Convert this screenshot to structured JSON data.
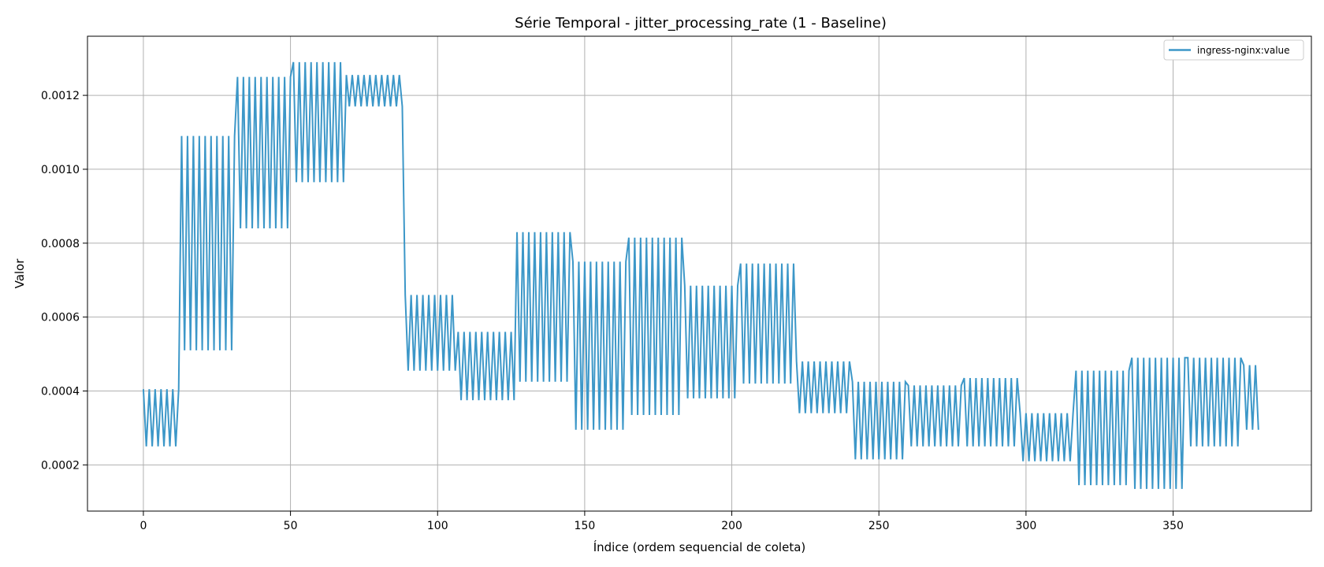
{
  "chart_data": {
    "type": "line",
    "title": "Série Temporal - jitter_processing_rate (1 - Baseline)",
    "xlabel": "Índice (ordem sequencial de coleta)",
    "ylabel": "Valor",
    "xlim": [
      -19,
      397
    ],
    "ylim": [
      7.5e-05,
      0.00136
    ],
    "xticks": [
      0,
      50,
      100,
      150,
      200,
      250,
      300,
      350
    ],
    "xtick_labels": [
      "0",
      "50",
      "100",
      "150",
      "200",
      "250",
      "300",
      "350"
    ],
    "yticks": [
      0.0002,
      0.0004,
      0.0006,
      0.0008,
      0.001,
      0.0012
    ],
    "ytick_labels": [
      "0.0002",
      "0.0004",
      "0.0006",
      "0.0008",
      "0.0010",
      "0.0012"
    ],
    "grid": true,
    "legend_position": "top-right",
    "series": [
      {
        "name": "ingress-nginx:value",
        "color": "#3c97c8",
        "segments": [
          {
            "start": 0,
            "end": 12,
            "high": 0.000405,
            "low": 0.00025
          },
          {
            "start": 13,
            "end": 31,
            "high": 0.00109,
            "low": 0.00051
          },
          {
            "start": 32,
            "end": 50,
            "high": 0.00125,
            "low": 0.00084
          },
          {
            "start": 51,
            "end": 68,
            "high": 0.00129,
            "low": 0.000965
          },
          {
            "start": 69,
            "end": 88,
            "high": 0.001255,
            "low": 0.00117
          },
          {
            "start": 89,
            "end": 106,
            "high": 0.00066,
            "low": 0.000455
          },
          {
            "start": 107,
            "end": 126,
            "high": 0.00056,
            "low": 0.000375
          },
          {
            "start": 127,
            "end": 145,
            "high": 0.00083,
            "low": 0.000425
          },
          {
            "start": 146,
            "end": 164,
            "high": 0.00075,
            "low": 0.000295
          },
          {
            "start": 165,
            "end": 183,
            "high": 0.000815,
            "low": 0.000335
          },
          {
            "start": 184,
            "end": 202,
            "high": 0.000685,
            "low": 0.00038
          },
          {
            "start": 203,
            "end": 221,
            "high": 0.000745,
            "low": 0.00042
          },
          {
            "start": 222,
            "end": 240,
            "high": 0.00048,
            "low": 0.00034
          },
          {
            "start": 241,
            "end": 259,
            "high": 0.000425,
            "low": 0.000215
          },
          {
            "start": 260,
            "end": 278,
            "high": 0.000415,
            "low": 0.00025
          },
          {
            "start": 279,
            "end": 297,
            "high": 0.000435,
            "low": 0.00025
          },
          {
            "start": 298,
            "end": 316,
            "high": 0.00034,
            "low": 0.00021
          },
          {
            "start": 317,
            "end": 335,
            "high": 0.000455,
            "low": 0.000145
          },
          {
            "start": 336,
            "end": 354,
            "high": 0.00049,
            "low": 0.000135
          },
          {
            "start": 355,
            "end": 373,
            "high": 0.00049,
            "low": 0.00025
          },
          {
            "start": 374,
            "end": 379,
            "high": 0.00047,
            "low": 0.000295
          }
        ]
      }
    ]
  }
}
